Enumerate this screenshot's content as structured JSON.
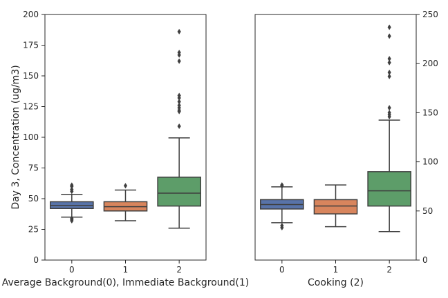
{
  "chart_data": [
    {
      "type": "box",
      "xlabel": "Average Background(0), Immediate Background(1)",
      "ylabel": "Day 3, Concentration (ug/m3)",
      "ylim": [
        0,
        200
      ],
      "yticks": [
        "0",
        "25",
        "50",
        "75",
        "100",
        "125",
        "150",
        "175",
        "200"
      ],
      "y_axis_side": "left",
      "grid": false,
      "groups": [
        {
          "label": "0",
          "color": "#5873a8",
          "q1": 42,
          "median": 44.5,
          "q3": 47.5,
          "whisker_low": 35,
          "whisker_high": 53.5,
          "outliers": [
            56,
            57.5,
            60,
            61,
            34,
            33,
            32
          ]
        },
        {
          "label": "1",
          "color": "#d8855d",
          "q1": 40,
          "median": 43.5,
          "q3": 47.5,
          "whisker_low": 32,
          "whisker_high": 57,
          "outliers": [
            60.5
          ]
        },
        {
          "label": "2",
          "color": "#5d9d69",
          "q1": 44,
          "median": 54.5,
          "q3": 67.5,
          "whisker_low": 26,
          "whisker_high": 99.5,
          "outliers": [
            109,
            121,
            122,
            124,
            126,
            129,
            132,
            134,
            162,
            167,
            169,
            186
          ]
        }
      ]
    },
    {
      "type": "box",
      "xlabel": "Cooking (2)",
      "ylabel": "",
      "ylim": [
        0,
        250
      ],
      "yticks": [
        "0",
        "50",
        "100",
        "150",
        "200",
        "250"
      ],
      "y_axis_side": "right",
      "grid": false,
      "groups": [
        {
          "label": "0",
          "color": "#5873a8",
          "q1": 52,
          "median": 56.5,
          "q3": 61.5,
          "whisker_low": 38,
          "whisker_high": 74.5,
          "outliers": [
            75.5,
            76.5,
            35,
            33
          ]
        },
        {
          "label": "1",
          "color": "#d8855d",
          "q1": 47,
          "median": 55,
          "q3": 61.5,
          "whisker_low": 34,
          "whisker_high": 76.5,
          "outliers": []
        },
        {
          "label": "2",
          "color": "#5d9d69",
          "q1": 55,
          "median": 70.5,
          "q3": 90,
          "whisker_low": 29,
          "whisker_high": 142.5,
          "outliers": [
            146,
            148,
            150,
            155,
            187,
            191,
            201,
            205,
            228,
            237
          ]
        }
      ]
    }
  ]
}
